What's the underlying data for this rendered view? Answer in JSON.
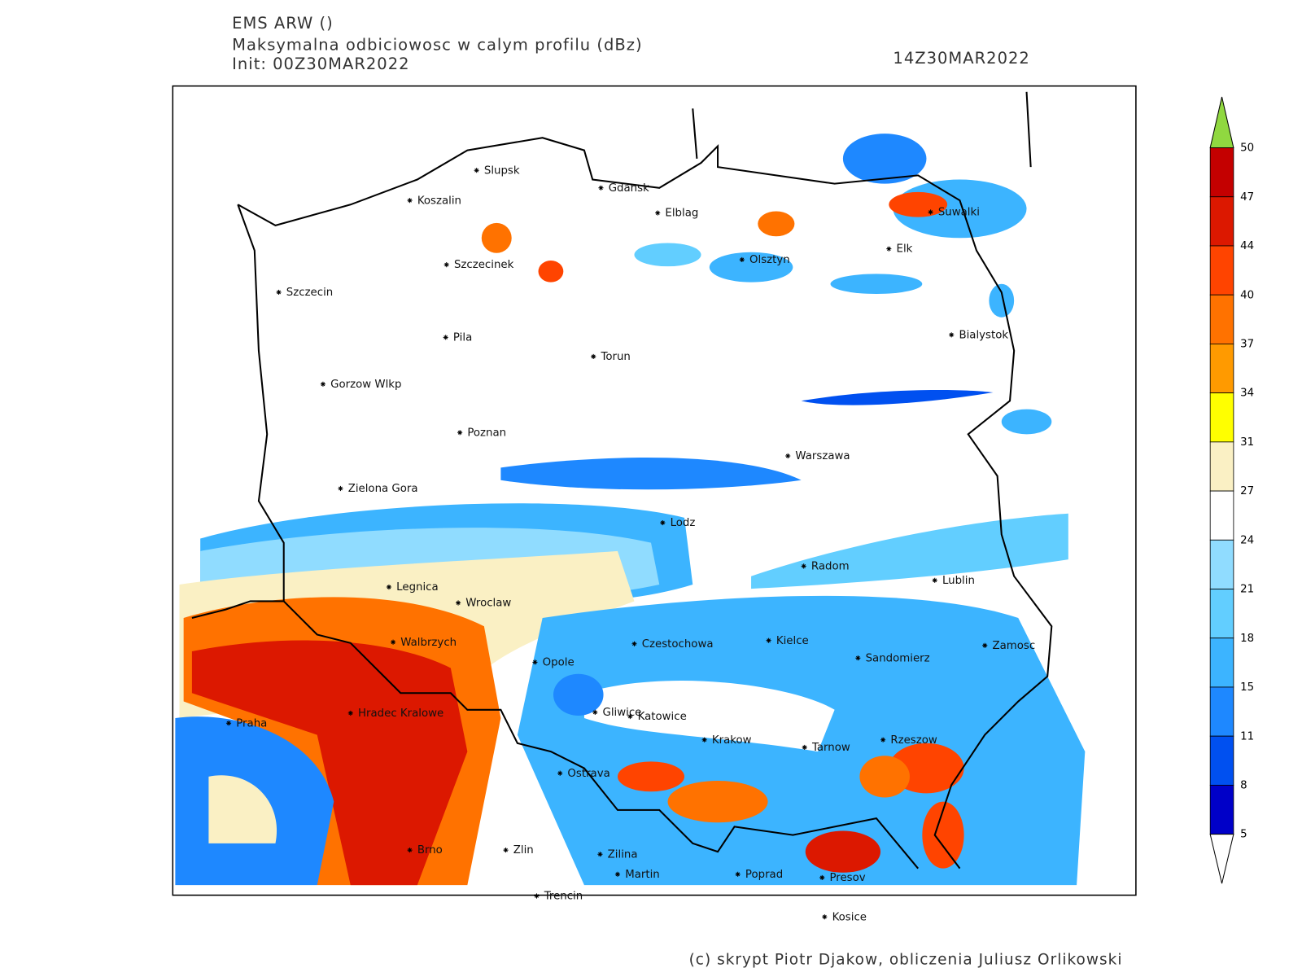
{
  "header": {
    "model": "EMS ARW ()",
    "title": "Maksymalna odbiciowosc w calym profilu (dBz)",
    "init": "Init: 00Z30MAR2022",
    "valid": "14Z30MAR2022"
  },
  "cities": [
    "Slupsk",
    "Koszalin",
    "Gdansk",
    "Elblag",
    "Szczecinek",
    "Szczecin",
    "Olsztyn",
    "Elk",
    "Suwalki",
    "Pila",
    "Torun",
    "Bialystok",
    "Gorzow Wlkp",
    "Poznan",
    "Warszawa",
    "Zielona Gora",
    "Lodz",
    "Radom",
    "Lublin",
    "Legnica",
    "Wroclaw",
    "Walbrzych",
    "Czestochowa",
    "Kielce",
    "Zamosc",
    "Opole",
    "Sandomierz",
    "Praha",
    "Hradec Kralowe",
    "Gliwice",
    "Katowice",
    "Krakow",
    "Tarnow",
    "Rzeszow",
    "Ostrava",
    "Brno",
    "Zlin",
    "Zilina",
    "Martin",
    "Poprad",
    "Presov",
    "Trencin",
    "Kosice"
  ],
  "colorbar": {
    "levels": [
      50,
      47,
      44,
      40,
      37,
      34,
      31,
      27,
      24,
      21,
      18,
      15,
      11,
      8,
      5
    ],
    "colors": [
      "#c40000",
      "#dc1800",
      "#ff4400",
      "#ff7200",
      "#ff9a00",
      "#ffff00",
      "#faf0c4",
      "#ffffff",
      "#90dcff",
      "#62ceff",
      "#3cb4ff",
      "#1e88ff",
      "#0050f0",
      "#0000c8"
    ],
    "over_color": "#90d840",
    "under_color": "#ffffff"
  },
  "footer": "(c) skrypt Piotr Djakow, obliczenia Juliusz Orlikowski"
}
